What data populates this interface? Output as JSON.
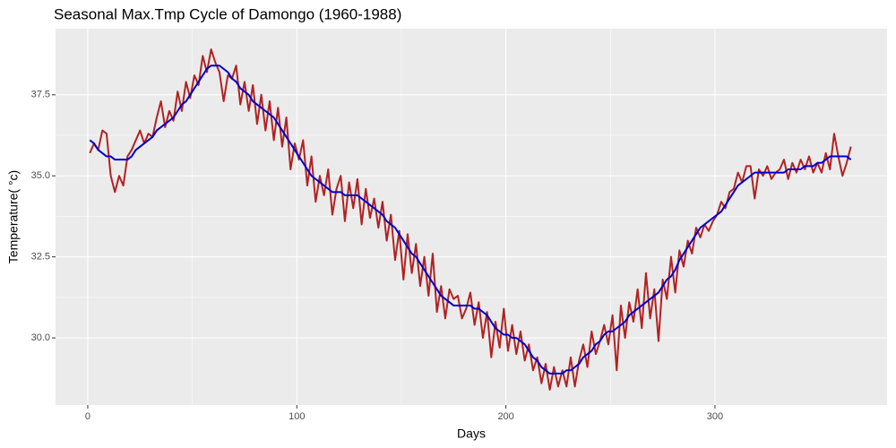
{
  "chart_data": {
    "type": "line",
    "title": "Seasonal Max.Tmp Cycle of Damongo (1960-1988)",
    "x_label": "Days",
    "y_label": "Temperature( °c)",
    "xlim": [
      -15.4,
      382.3
    ],
    "ylim": [
      27.93,
      39.54
    ],
    "xticks": [
      0,
      100,
      200,
      300
    ],
    "yticks": [
      {
        "value": 30,
        "label": "30.0"
      },
      32.5,
      {
        "value": 35,
        "label": "35.0"
      },
      37.5
    ],
    "grid": true,
    "x": [
      1,
      3,
      5,
      7,
      9,
      11,
      13,
      15,
      17,
      19,
      21,
      23,
      25,
      27,
      29,
      31,
      33,
      35,
      37,
      39,
      41,
      43,
      45,
      47,
      49,
      51,
      53,
      55,
      57,
      59,
      61,
      63,
      65,
      67,
      69,
      71,
      73,
      75,
      77,
      79,
      81,
      83,
      85,
      87,
      89,
      91,
      93,
      95,
      97,
      99,
      101,
      103,
      105,
      107,
      109,
      111,
      113,
      115,
      117,
      119,
      121,
      123,
      125,
      127,
      129,
      131,
      133,
      135,
      137,
      139,
      141,
      143,
      145,
      147,
      149,
      151,
      153,
      155,
      157,
      159,
      161,
      163,
      165,
      167,
      169,
      171,
      173,
      175,
      177,
      179,
      181,
      183,
      185,
      187,
      189,
      191,
      193,
      195,
      197,
      199,
      201,
      203,
      205,
      207,
      209,
      211,
      213,
      215,
      217,
      219,
      221,
      223,
      225,
      227,
      229,
      231,
      233,
      235,
      237,
      239,
      241,
      243,
      245,
      247,
      249,
      251,
      253,
      255,
      257,
      259,
      261,
      263,
      265,
      267,
      269,
      271,
      273,
      275,
      277,
      279,
      281,
      283,
      285,
      287,
      289,
      291,
      293,
      295,
      297,
      299,
      301,
      303,
      305,
      307,
      309,
      311,
      313,
      315,
      317,
      319,
      321,
      323,
      325,
      327,
      329,
      331,
      333,
      335,
      337,
      339,
      341,
      343,
      345,
      347,
      349,
      351,
      353,
      355,
      357,
      359,
      361,
      363,
      365
    ],
    "series": [
      {
        "color": "#b22222",
        "values": [
          35.7,
          36.0,
          35.8,
          36.4,
          36.3,
          35.0,
          34.5,
          35.0,
          34.7,
          35.6,
          35.8,
          36.1,
          36.4,
          36.0,
          36.3,
          36.2,
          36.8,
          37.3,
          36.5,
          37.0,
          36.7,
          37.6,
          37.0,
          37.9,
          37.4,
          38.1,
          37.8,
          38.7,
          38.2,
          38.9,
          38.5,
          38.2,
          37.3,
          38.1,
          38.0,
          38.4,
          37.2,
          37.9,
          37.0,
          37.8,
          36.6,
          37.5,
          36.4,
          37.3,
          36.1,
          37.1,
          35.9,
          36.8,
          35.2,
          36.0,
          35.5,
          36.1,
          34.7,
          35.6,
          34.2,
          35.0,
          34.4,
          35.2,
          33.8,
          34.6,
          35.0,
          33.6,
          34.8,
          34.0,
          34.9,
          33.5,
          34.6,
          33.7,
          34.3,
          33.4,
          34.2,
          33.0,
          33.8,
          32.4,
          33.3,
          31.8,
          33.2,
          32.0,
          32.9,
          31.6,
          32.5,
          31.3,
          32.6,
          30.8,
          31.6,
          30.6,
          31.5,
          31.2,
          31.3,
          30.6,
          30.9,
          31.4,
          30.4,
          31.1,
          30.0,
          30.8,
          29.4,
          30.5,
          29.7,
          30.9,
          29.6,
          30.4,
          29.5,
          30.2,
          29.3,
          29.8,
          29.0,
          29.4,
          28.6,
          29.2,
          28.4,
          29.1,
          28.5,
          29.0,
          28.5,
          29.4,
          28.5,
          29.3,
          29.8,
          29.1,
          30.2,
          29.5,
          29.9,
          30.4,
          29.8,
          30.7,
          29.0,
          31.0,
          30.0,
          31.1,
          30.5,
          31.5,
          30.3,
          32.0,
          30.6,
          31.5,
          29.9,
          31.8,
          31.2,
          32.5,
          31.4,
          32.7,
          32.2,
          33.0,
          32.6,
          33.4,
          33.1,
          33.5,
          33.3,
          33.6,
          33.8,
          34.2,
          34.0,
          34.5,
          34.6,
          35.1,
          34.8,
          35.3,
          35.3,
          34.3,
          35.2,
          35.0,
          35.3,
          34.9,
          35.1,
          35.2,
          35.5,
          34.9,
          35.4,
          35.1,
          35.5,
          35.2,
          35.6,
          35.1,
          35.4,
          35.1,
          35.7,
          35.2,
          36.3,
          35.6,
          35.0,
          35.4,
          35.9
        ]
      },
      {
        "color": "#0000cd",
        "values": [
          36.1,
          36.0,
          35.8,
          35.7,
          35.6,
          35.6,
          35.5,
          35.5,
          35.5,
          35.5,
          35.6,
          35.8,
          35.9,
          36.0,
          36.1,
          36.2,
          36.4,
          36.5,
          36.6,
          36.7,
          36.8,
          37.0,
          37.2,
          37.3,
          37.5,
          37.7,
          37.9,
          38.1,
          38.3,
          38.4,
          38.4,
          38.4,
          38.3,
          38.2,
          38.0,
          37.9,
          37.7,
          37.6,
          37.5,
          37.3,
          37.2,
          37.1,
          37.0,
          36.9,
          36.8,
          36.6,
          36.4,
          36.2,
          36.0,
          35.8,
          35.6,
          35.4,
          35.2,
          35.0,
          34.9,
          34.8,
          34.7,
          34.6,
          34.5,
          34.5,
          34.5,
          34.4,
          34.4,
          34.4,
          34.4,
          34.3,
          34.2,
          34.1,
          34.0,
          33.9,
          33.8,
          33.6,
          33.5,
          33.4,
          33.2,
          33.0,
          32.8,
          32.6,
          32.5,
          32.3,
          32.1,
          31.9,
          31.7,
          31.5,
          31.3,
          31.2,
          31.1,
          31.0,
          31.0,
          31.0,
          31.0,
          31.0,
          30.9,
          30.9,
          30.8,
          30.7,
          30.5,
          30.3,
          30.2,
          30.1,
          30.1,
          30.0,
          30.0,
          29.9,
          29.8,
          29.6,
          29.4,
          29.3,
          29.1,
          29.0,
          28.9,
          28.9,
          28.9,
          28.9,
          29.0,
          29.0,
          29.1,
          29.2,
          29.4,
          29.5,
          29.6,
          29.8,
          29.9,
          30.1,
          30.2,
          30.2,
          30.3,
          30.4,
          30.5,
          30.7,
          30.8,
          30.9,
          31.0,
          31.1,
          31.2,
          31.3,
          31.4,
          31.6,
          31.8,
          31.9,
          32.1,
          32.4,
          32.6,
          32.8,
          33.0,
          33.2,
          33.4,
          33.5,
          33.6,
          33.7,
          33.8,
          33.9,
          34.1,
          34.3,
          34.5,
          34.7,
          34.8,
          34.9,
          35.0,
          35.1,
          35.1,
          35.1,
          35.1,
          35.1,
          35.1,
          35.1,
          35.1,
          35.2,
          35.2,
          35.2,
          35.2,
          35.3,
          35.3,
          35.3,
          35.4,
          35.4,
          35.5,
          35.6,
          35.6,
          35.6,
          35.6,
          35.6,
          35.5
        ]
      }
    ]
  }
}
